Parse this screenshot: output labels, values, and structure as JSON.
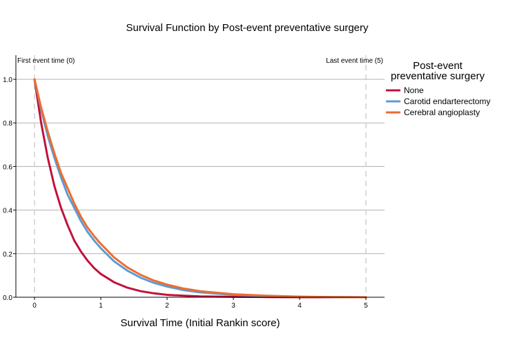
{
  "chart_data": {
    "type": "line",
    "title": "Survival Function by Post-event preventative surgery",
    "xlabel": "Survival Time (Initial Rankin score)",
    "ylabel": "",
    "xlim": [
      -0.3,
      5.3
    ],
    "ylim": [
      0,
      1.1
    ],
    "x_ticks": [
      0,
      1,
      2,
      3,
      4,
      5
    ],
    "y_ticks": [
      0.0,
      0.2,
      0.4,
      0.6,
      0.8,
      1.0
    ],
    "x_tick_labels": [
      "0",
      "1",
      "2",
      "3",
      "4",
      "5"
    ],
    "y_tick_labels": [
      "0.0",
      "0.2",
      "0.4",
      "0.6",
      "0.8",
      "1.0"
    ],
    "grid": "horizontal",
    "legend_position": "right",
    "legend_title_lines": [
      "Post-event",
      "preventative surgery"
    ],
    "reference_lines": [
      {
        "x": 0,
        "label": "First event time (0)"
      },
      {
        "x": 5,
        "label": "Last event time (5)"
      }
    ],
    "series": [
      {
        "name": "None",
        "color": "#c0113a",
        "x": [
          0,
          0.1,
          0.2,
          0.3,
          0.4,
          0.5,
          0.6,
          0.7,
          0.8,
          0.9,
          1.0,
          1.2,
          1.4,
          1.6,
          1.8,
          2.0,
          2.25,
          2.5,
          3.0,
          3.5,
          4.0,
          4.5,
          5.0
        ],
        "y": [
          1.0,
          0.8,
          0.64,
          0.51,
          0.41,
          0.33,
          0.26,
          0.21,
          0.168,
          0.134,
          0.107,
          0.069,
          0.044,
          0.028,
          0.018,
          0.011,
          0.007,
          0.004,
          0.002,
          0.001,
          0.0,
          0.0,
          0.0
        ]
      },
      {
        "name": "Carotid endarterectomy",
        "color": "#5b9bd5",
        "x": [
          0,
          0.1,
          0.2,
          0.3,
          0.4,
          0.5,
          0.6,
          0.7,
          0.8,
          0.9,
          1.0,
          1.2,
          1.4,
          1.6,
          1.8,
          2.0,
          2.25,
          2.5,
          3.0,
          3.5,
          4.0,
          4.5,
          5.0
        ],
        "y": [
          1.0,
          0.86,
          0.74,
          0.64,
          0.55,
          0.47,
          0.41,
          0.35,
          0.3,
          0.26,
          0.225,
          0.165,
          0.122,
          0.09,
          0.066,
          0.049,
          0.033,
          0.022,
          0.011,
          0.005,
          0.002,
          0.001,
          0.0
        ]
      },
      {
        "name": "Cerebral angioplasty",
        "color": "#ee6c2e",
        "x": [
          0,
          0.1,
          0.2,
          0.3,
          0.4,
          0.5,
          0.6,
          0.7,
          0.8,
          0.9,
          1.0,
          1.2,
          1.4,
          1.6,
          1.8,
          2.0,
          2.25,
          2.5,
          3.0,
          3.5,
          4.0,
          4.5,
          5.0
        ],
        "y": [
          1.0,
          0.87,
          0.76,
          0.66,
          0.57,
          0.5,
          0.43,
          0.37,
          0.32,
          0.28,
          0.245,
          0.183,
          0.137,
          0.103,
          0.077,
          0.058,
          0.04,
          0.028,
          0.014,
          0.007,
          0.003,
          0.001,
          0.0
        ]
      }
    ]
  }
}
